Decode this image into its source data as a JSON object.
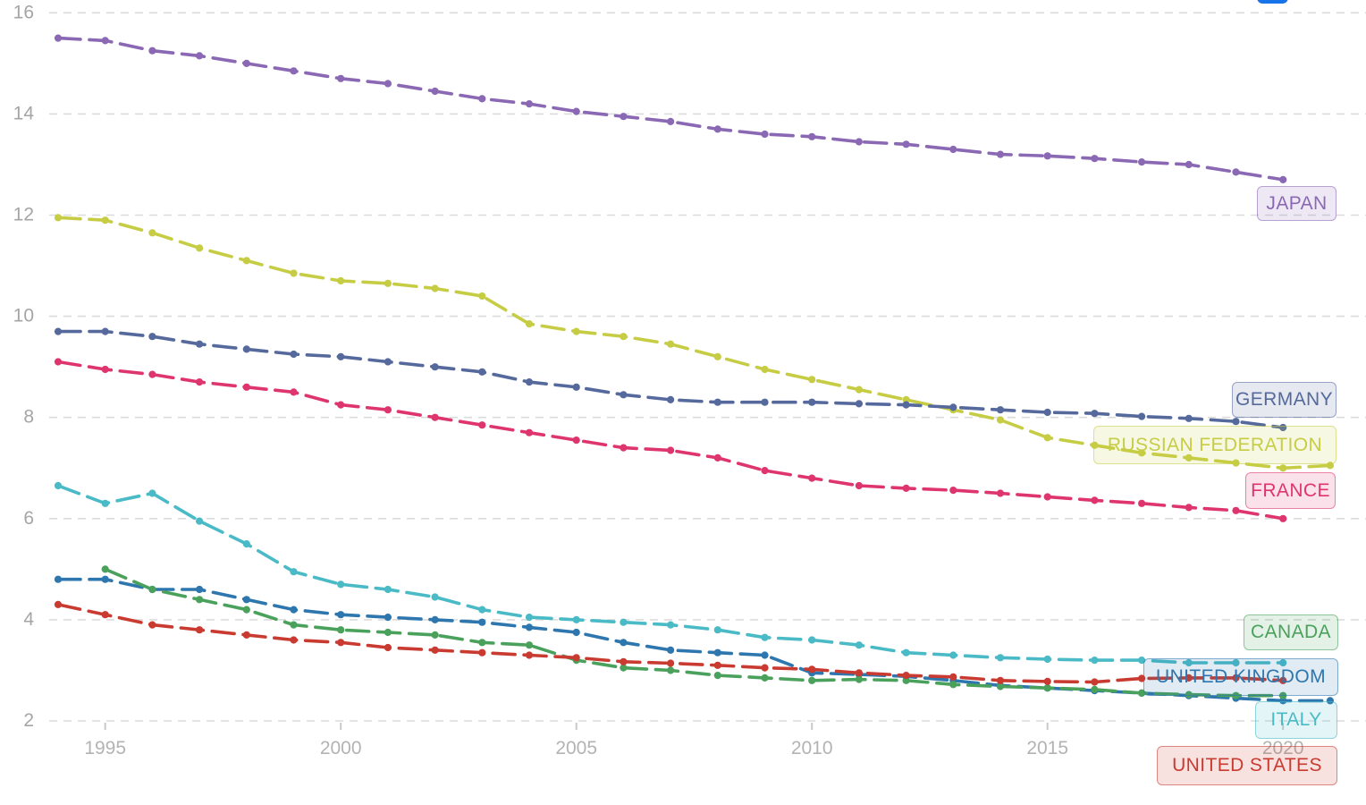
{
  "page": {
    "background": "#ffffff"
  },
  "top_button": {
    "color": "#1673e8"
  },
  "axis": {
    "x_tick_labels": [
      "1995",
      "2000",
      "2005",
      "2010",
      "2015",
      "2020"
    ],
    "y_tick_labels": [
      "2",
      "4",
      "6",
      "8",
      "10",
      "12",
      "14",
      "16"
    ],
    "tick_color": "#b3b3b3",
    "y_label_color": "#a5a5a5",
    "grid_color": "#dbdbdb"
  },
  "chart_data": {
    "type": "line",
    "title": "",
    "grid": "horizontal-dashed",
    "x_ticks": [
      1995,
      2000,
      2005,
      2010,
      2015,
      2020
    ],
    "y_ticks": [
      2,
      4,
      6,
      8,
      10,
      12,
      14,
      16
    ],
    "x_range": [
      1993.8,
      2021.8
    ],
    "y_range": [
      2,
      16.25
    ],
    "legend_position": "end-of-line-labels",
    "series": [
      {
        "label": "JAPAN",
        "color": "#8a68b4",
        "start_year": 1994,
        "values": [
          15.5,
          15.45,
          15.25,
          15.15,
          15.0,
          14.85,
          14.7,
          14.6,
          14.45,
          14.3,
          14.2,
          14.05,
          13.95,
          13.85,
          13.7,
          13.6,
          13.55,
          13.45,
          13.4,
          13.3,
          13.2,
          13.17,
          13.12,
          13.05,
          13.0,
          12.85,
          12.7
        ]
      },
      {
        "label": "RUSSIAN FEDERATION",
        "color": "#c6cd45",
        "start_year": 1994,
        "values": [
          11.95,
          11.9,
          11.65,
          11.35,
          11.1,
          10.85,
          10.7,
          10.65,
          10.55,
          10.4,
          9.85,
          9.7,
          9.6,
          9.45,
          9.2,
          8.95,
          8.75,
          8.55,
          8.35,
          8.15,
          7.95,
          7.6,
          7.45,
          7.3,
          7.2,
          7.1,
          7.0,
          7.05
        ]
      },
      {
        "label": "GERMANY",
        "color": "#55699c",
        "start_year": 1994,
        "values": [
          9.7,
          9.7,
          9.6,
          9.45,
          9.35,
          9.25,
          9.2,
          9.1,
          9.0,
          8.9,
          8.7,
          8.6,
          8.45,
          8.35,
          8.3,
          8.3,
          8.3,
          8.27,
          8.25,
          8.2,
          8.15,
          8.1,
          8.08,
          8.02,
          7.98,
          7.92,
          7.8
        ]
      },
      {
        "label": "FRANCE",
        "color": "#df356f",
        "start_year": 1994,
        "values": [
          9.1,
          8.95,
          8.85,
          8.7,
          8.6,
          8.5,
          8.25,
          8.15,
          8.0,
          7.85,
          7.7,
          7.55,
          7.4,
          7.35,
          7.2,
          6.95,
          6.8,
          6.65,
          6.6,
          6.56,
          6.5,
          6.43,
          6.36,
          6.3,
          6.22,
          6.16,
          6.0
        ]
      },
      {
        "label": "ITALY",
        "color": "#49bac6",
        "start_year": 1994,
        "values": [
          6.65,
          6.3,
          6.5,
          5.95,
          5.5,
          4.95,
          4.7,
          4.6,
          4.45,
          4.2,
          4.05,
          4.0,
          3.95,
          3.9,
          3.8,
          3.65,
          3.6,
          3.5,
          3.35,
          3.3,
          3.25,
          3.22,
          3.2,
          3.2,
          3.15,
          3.15,
          3.15
        ]
      },
      {
        "label": "UNITED KINGDOM",
        "color": "#2d76ae",
        "start_year": 1994,
        "values": [
          4.8,
          4.8,
          4.6,
          4.6,
          4.4,
          4.2,
          4.1,
          4.05,
          4.0,
          3.95,
          3.85,
          3.75,
          3.55,
          3.4,
          3.35,
          3.3,
          2.95,
          2.92,
          2.88,
          2.8,
          2.7,
          2.65,
          2.6,
          2.55,
          2.5,
          2.45,
          2.4,
          2.4
        ]
      },
      {
        "label": "CANADA",
        "color": "#4aa15c",
        "start_year": 1995,
        "values": [
          5.0,
          4.6,
          4.4,
          4.2,
          3.9,
          3.8,
          3.75,
          3.7,
          3.55,
          3.5,
          3.2,
          3.05,
          3.0,
          2.9,
          2.85,
          2.8,
          2.82,
          2.8,
          2.72,
          2.68,
          2.65,
          2.62,
          2.55,
          2.52,
          2.5,
          2.5
        ]
      },
      {
        "label": "UNITED STATES",
        "color": "#c93a31",
        "start_year": 1994,
        "values": [
          4.3,
          4.1,
          3.9,
          3.8,
          3.7,
          3.6,
          3.55,
          3.45,
          3.4,
          3.35,
          3.3,
          3.25,
          3.17,
          3.14,
          3.1,
          3.05,
          3.02,
          2.95,
          2.9,
          2.87,
          2.8,
          2.78,
          2.77,
          2.84,
          2.85,
          2.85,
          2.8
        ]
      }
    ]
  }
}
